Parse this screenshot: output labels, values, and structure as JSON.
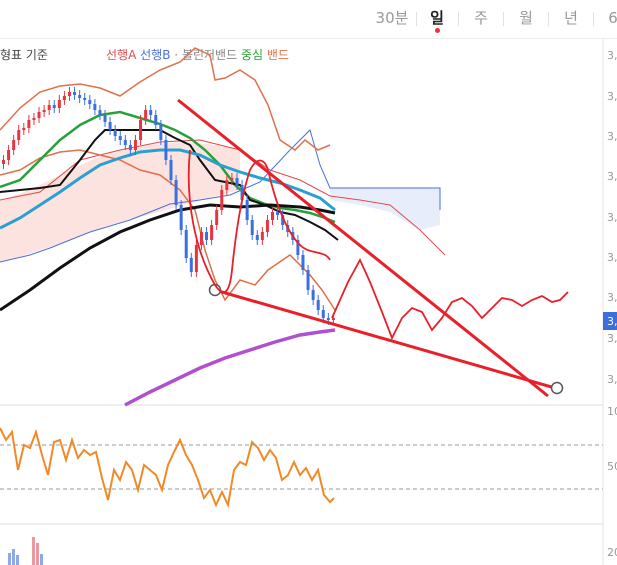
{
  "tabs": {
    "items": [
      "30분",
      "일",
      "주",
      "월",
      "년",
      "6"
    ],
    "active_index": 1,
    "active_dot_color": "#e8343f"
  },
  "legend": {
    "indicator_prefix": "형표 기준",
    "items": [
      {
        "label": "선행A",
        "color": "#e04b4b"
      },
      {
        "label": "선행B",
        "color": "#4a6fd8"
      },
      {
        "label": "·",
        "color": "#888888"
      },
      {
        "label": "볼린저밴드",
        "color": "#888888"
      },
      {
        "label": "중심",
        "color": "#2aa03a"
      },
      {
        "label": "밴드",
        "color": "#e0704b"
      }
    ]
  },
  "price_axis": {
    "tick_labels": [
      "3,",
      "3,",
      "3,",
      "3,",
      "3,",
      "3,",
      "3,",
      "3,",
      "3,",
      "2,"
    ],
    "current_price_tag": "3,"
  },
  "rsi_axis": {
    "tick_labels": [
      "10",
      "50"
    ]
  },
  "volume_axis": {
    "tick_labels": [
      "20"
    ]
  },
  "colors": {
    "candle_up": "#e8343f",
    "candle_down": "#3b6fe0",
    "cloud_fill": "#fde3e0",
    "cloud_fill_b": "#e8edfb",
    "ma_black": "#111111",
    "ma_green": "#2aa03a",
    "ma_cyan": "#2aa0d0",
    "ma_purple": "#b050d0",
    "bollinger": "#e0704b",
    "trend_lines": "#e8202a",
    "projection": "#e8202a",
    "rsi_line": "#f08a28",
    "price_tag_bg": "#3b6fe0"
  },
  "chart_data": [
    {
      "type": "line",
      "title": "",
      "description": "Daily candlestick price chart with Ichimoku cloud, Bollinger bands, moving averages, hand-drawn falling wedge trend lines and a projected zig-zag path",
      "x_units": "trading days (approx. index across the visible window)",
      "ohlc_summary": {
        "trend": "rising into a peak around day 28, then a falling wedge down to a low near day 62",
        "candle_count_approx": 66
      },
      "series": [
        {
          "name": "선행A",
          "role": "cloud span A"
        },
        {
          "name": "선행B",
          "role": "cloud span B"
        },
        {
          "name": "중심",
          "role": "bollinger middle"
        },
        {
          "name": "밴드",
          "role": "bollinger upper/lower"
        }
      ],
      "annotations": [
        "descending upper trend line",
        "ascending-slope lower trend line (wedge)",
        "projected zig-zag price path to the right"
      ]
    },
    {
      "type": "line",
      "title": "",
      "description": "RSI-style oscillator panel",
      "dashed_levels": [
        70,
        30
      ],
      "axis_labels_shown": [
        "10",
        "50"
      ]
    },
    {
      "type": "bar",
      "title": "",
      "description": "Volume panel (bars mostly cropped at the bottom)",
      "axis_labels_shown": [
        "20"
      ]
    }
  ]
}
